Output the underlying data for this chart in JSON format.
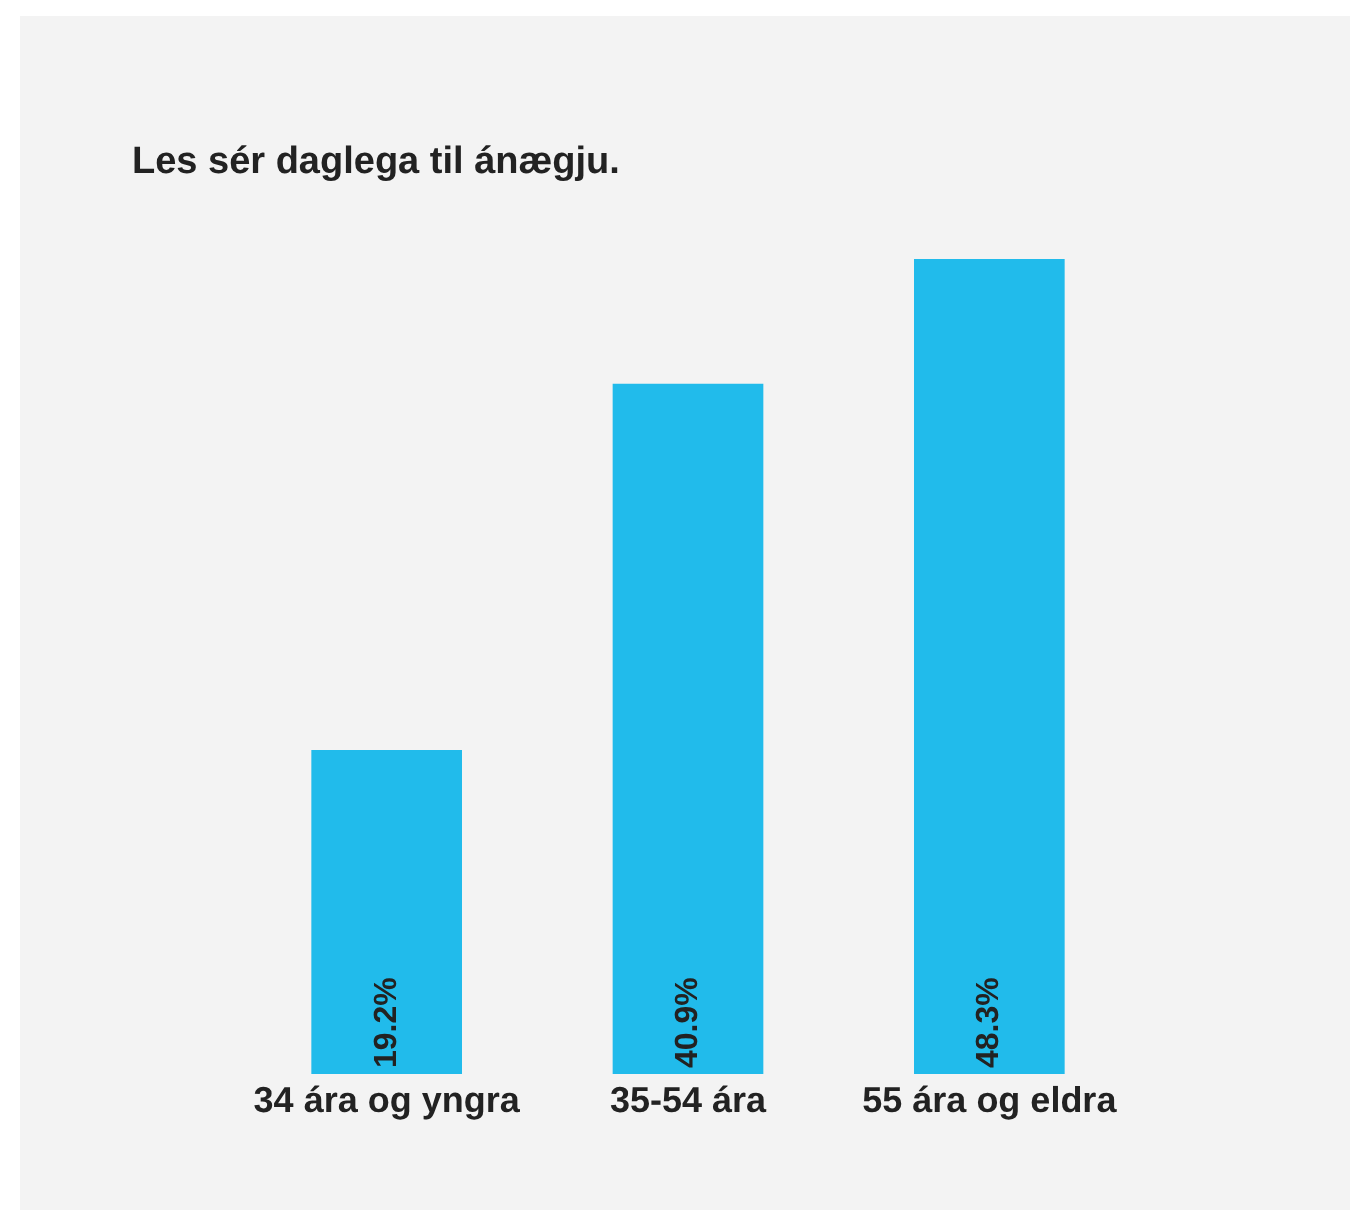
{
  "chart_data": {
    "type": "bar",
    "title": "Les sér daglega til ánægju.",
    "categories": [
      "34 ára og yngra",
      "35-54 ára",
      "55 ára og eldra"
    ],
    "values": [
      19.2,
      40.9,
      48.3
    ],
    "value_labels": [
      "19.2%",
      "40.9%",
      "48.3%"
    ],
    "color": "#21bbeb"
  }
}
